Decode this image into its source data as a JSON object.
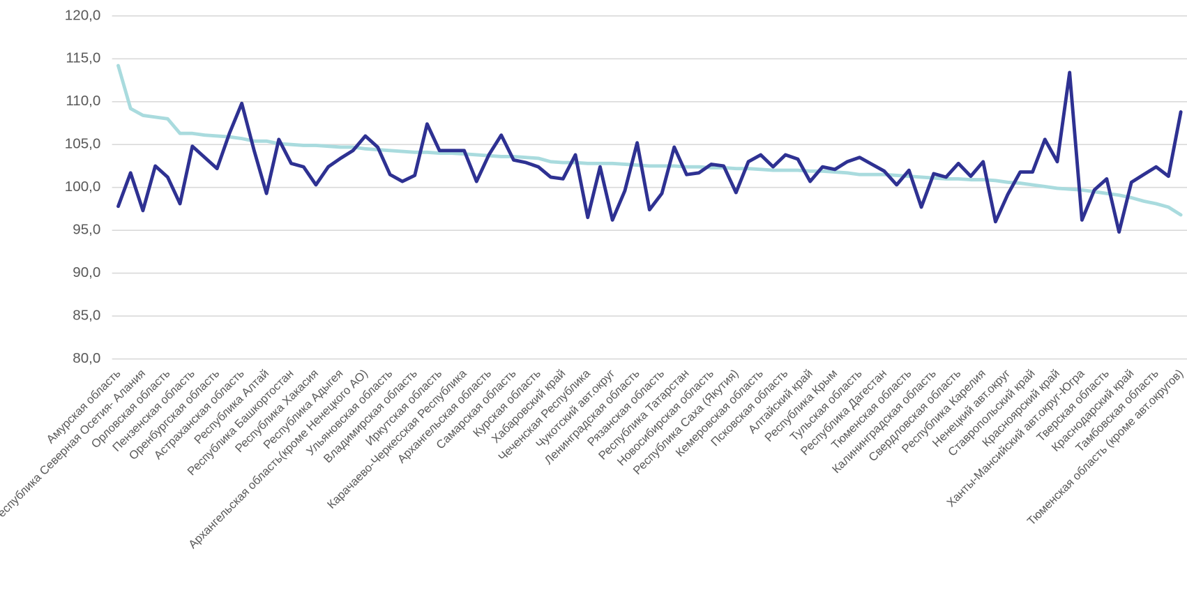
{
  "chart_data": {
    "type": "line",
    "categories": [
      "Амурская область",
      null,
      "Республика Северная Осетия- Алания",
      null,
      "Орловская область",
      null,
      "Пензенская область",
      null,
      "Оренбургская область",
      null,
      "Астраханская область",
      null,
      "Республика Алтай",
      null,
      "Республика Башкортостан",
      null,
      "Республика Хакасия",
      null,
      "Республика Адыгея",
      null,
      "Архангельская область(кроме Ненецкого АО)",
      null,
      "Ульяновская область",
      null,
      "Владимирская область",
      null,
      "Иркутская область",
      null,
      "Карачаево-Черкесская Республика",
      null,
      "Архангельская область",
      null,
      "Самарская область",
      null,
      "Курская область",
      null,
      "Хабаровский край",
      null,
      "Чеченская Республика",
      null,
      "Чукотский авт.округ",
      null,
      "Ленинградская область",
      null,
      "Рязанская область",
      null,
      "Республика Татарстан",
      null,
      "Новосибирская область",
      null,
      "Республика Саха (Якутия)",
      null,
      "Кемеровская область",
      null,
      "Псковская область",
      null,
      "Алтайский край",
      null,
      "Республика Крым",
      null,
      "Тульская область",
      null,
      "Республика Дагестан",
      null,
      "Тюменская область",
      null,
      "Калининградская область",
      null,
      "Свердловская область",
      null,
      "Республика Карелия",
      null,
      "Ненецкий авт.округ",
      null,
      "Ставропольский край",
      null,
      "Красноярский край",
      null,
      "Ханты-Мансийский авт.округ-Югра",
      null,
      "Тверская область",
      null,
      "Краснодарский край",
      null,
      "Тамбовская область",
      null,
      "Тюменская область (кроме авт.округов)"
    ],
    "series": [
      {
        "color": "#a9dbde",
        "values": [
          114.2,
          109.2,
          108.4,
          108.2,
          108.0,
          106.3,
          106.3,
          106.1,
          106.0,
          105.9,
          105.7,
          105.4,
          105.4,
          105.1,
          105.0,
          104.9,
          104.9,
          104.8,
          104.7,
          104.7,
          104.5,
          104.4,
          104.3,
          104.2,
          104.1,
          104.1,
          104.0,
          104.0,
          103.9,
          103.8,
          103.7,
          103.6,
          103.6,
          103.5,
          103.4,
          103.0,
          102.9,
          102.9,
          102.8,
          102.8,
          102.8,
          102.7,
          102.6,
          102.5,
          102.5,
          102.5,
          102.4,
          102.4,
          102.3,
          102.3,
          102.2,
          102.2,
          102.1,
          102.0,
          102.0,
          102.0,
          101.9,
          101.9,
          101.8,
          101.7,
          101.5,
          101.5,
          101.5,
          101.4,
          101.3,
          101.2,
          101.1,
          101.0,
          101.0,
          100.9,
          100.9,
          100.8,
          100.6,
          100.5,
          100.3,
          100.1,
          99.9,
          99.8,
          99.7,
          99.5,
          99.3,
          99.1,
          98.8,
          98.4,
          98.1,
          97.7,
          96.8
        ]
      },
      {
        "color": "#2e3192",
        "values": [
          97.8,
          101.7,
          97.3,
          102.5,
          101.2,
          98.1,
          104.8,
          103.5,
          102.2,
          106.3,
          109.8,
          104.3,
          99.3,
          105.6,
          102.8,
          102.4,
          100.3,
          102.4,
          103.4,
          104.3,
          106.0,
          104.7,
          101.5,
          100.7,
          101.4,
          107.4,
          104.3,
          104.3,
          104.3,
          100.7,
          103.8,
          106.1,
          103.2,
          102.9,
          102.4,
          101.2,
          101.0,
          103.8,
          96.5,
          102.4,
          96.2,
          99.6,
          105.2,
          97.4,
          99.3,
          104.7,
          101.5,
          101.7,
          102.7,
          102.5,
          99.4,
          103.0,
          103.8,
          102.4,
          103.8,
          103.3,
          100.7,
          102.4,
          102.1,
          103.0,
          103.5,
          102.7,
          101.9,
          100.3,
          102.0,
          97.7,
          101.6,
          101.2,
          102.8,
          101.3,
          103.0,
          96.0,
          99.2,
          101.8,
          101.8,
          105.6,
          103.0,
          113.4,
          96.2,
          99.7,
          101.0,
          94.8,
          100.6,
          101.5,
          102.4,
          101.3,
          108.8
        ]
      }
    ],
    "ylim": [
      80,
      120
    ],
    "yticks": [
      {
        "value": 80,
        "label": "80,0"
      },
      {
        "value": 85,
        "label": "85,0"
      },
      {
        "value": 90,
        "label": "90,0"
      },
      {
        "value": 95,
        "label": "95,0"
      },
      {
        "value": 100,
        "label": "100,0"
      },
      {
        "value": 105,
        "label": "105,0"
      },
      {
        "value": 110,
        "label": "110,0"
      },
      {
        "value": 115,
        "label": "115,0"
      },
      {
        "value": 120,
        "label": "120,0"
      }
    ],
    "grid": true
  }
}
